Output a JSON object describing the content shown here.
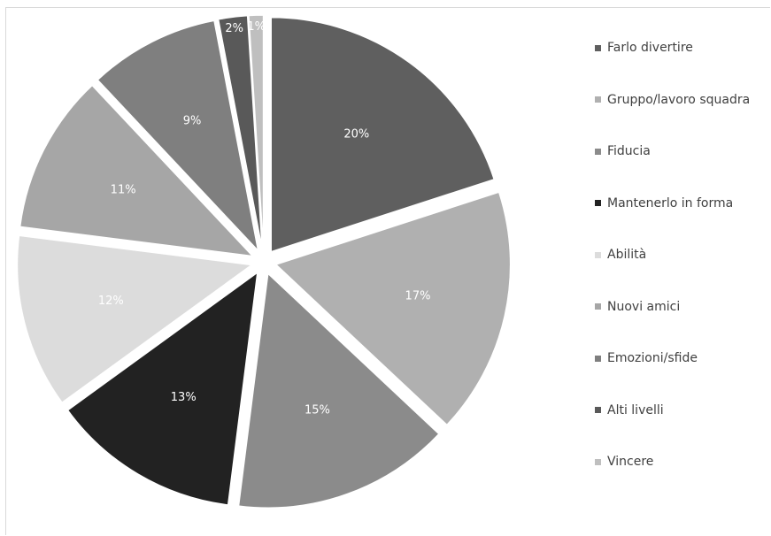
{
  "chart_data": {
    "type": "pie",
    "exploded": true,
    "start_angle_deg": 0,
    "direction": "clockwise",
    "slices": [
      {
        "label": "Farlo divertire",
        "value": 20,
        "value_label": "20%",
        "color": "#5f5f5f",
        "label_color": "#ffffff"
      },
      {
        "label": "Gruppo/lavoro squadra",
        "value": 17,
        "value_label": "17%",
        "color": "#b0b0b0",
        "label_color": "#ffffff"
      },
      {
        "label": "Fiducia",
        "value": 15,
        "value_label": "15%",
        "color": "#8b8b8b",
        "label_color": "#ffffff"
      },
      {
        "label": "Mantenerlo in forma",
        "value": 13,
        "value_label": "13%",
        "color": "#222222",
        "label_color": "#ffffff"
      },
      {
        "label": "Abilità",
        "value": 12,
        "value_label": "12%",
        "color": "#dcdcdc",
        "label_color": "#ffffff"
      },
      {
        "label": "Nuovi amici",
        "value": 11,
        "value_label": "11%",
        "color": "#a6a6a6",
        "label_color": "#ffffff"
      },
      {
        "label": "Emozioni/sfide",
        "value": 9,
        "value_label": "9%",
        "color": "#7f7f7f",
        "label_color": "#ffffff"
      },
      {
        "label": "Alti livelli",
        "value": 2,
        "value_label": "2%",
        "color": "#595959",
        "label_color": "#ffffff"
      },
      {
        "label": "Vincere",
        "value": 1,
        "value_label": "1%",
        "color": "#bfbfbf",
        "label_color": "#ffffff"
      }
    ],
    "legend_position": "right"
  }
}
